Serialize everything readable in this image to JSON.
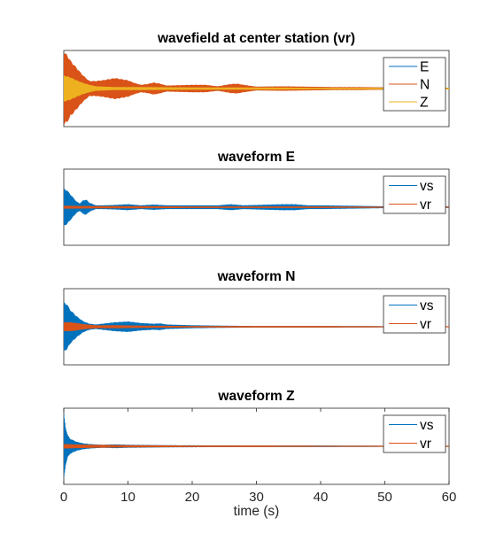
{
  "chart_data": [
    {
      "type": "line",
      "title": "wavefield at center station (vr)",
      "xlim": [
        0,
        60
      ],
      "ylim": [
        -1,
        1
      ],
      "legend": "top-right",
      "series": [
        {
          "name": "E",
          "color": "#0072BD",
          "envelope": {
            "x": [
              0,
              1,
              2,
              3,
              4,
              5,
              6,
              7,
              8,
              9,
              10,
              12,
              14,
              15,
              17,
              20,
              24,
              26,
              28,
              32,
              36,
              40,
              44,
              48,
              60
            ],
            "amp": [
              0.55,
              0.4,
              0.3,
              0.22,
              0.15,
              0.12,
              0.1,
              0.09,
              0.08,
              0.08,
              0.08,
              0.07,
              0.07,
              0.08,
              0.07,
              0.06,
              0.06,
              0.07,
              0.05,
              0.05,
              0.04,
              0.04,
              0.03,
              0.03,
              0.02
            ]
          }
        },
        {
          "name": "N",
          "color": "#D95319",
          "envelope": {
            "x": [
              0,
              0.5,
              1,
              2,
              3,
              4,
              5,
              6,
              7,
              8,
              9,
              10,
              11,
              12,
              13,
              14,
              15,
              16,
              18,
              20,
              22,
              24,
              26,
              27,
              28,
              30,
              34,
              38,
              42,
              46,
              50,
              55,
              60
            ],
            "amp": [
              0.95,
              0.9,
              0.75,
              0.55,
              0.35,
              0.2,
              0.2,
              0.22,
              0.25,
              0.28,
              0.25,
              0.22,
              0.15,
              0.1,
              0.12,
              0.16,
              0.13,
              0.08,
              0.09,
              0.1,
              0.1,
              0.06,
              0.12,
              0.13,
              0.1,
              0.05,
              0.06,
              0.05,
              0.04,
              0.04,
              0.03,
              0.02,
              0.02
            ]
          }
        },
        {
          "name": "Z",
          "color": "#EDB120",
          "envelope": {
            "x": [
              0,
              1,
              2,
              3,
              4,
              5,
              8,
              12,
              20,
              30,
              40,
              50,
              60
            ],
            "amp": [
              0.35,
              0.3,
              0.22,
              0.15,
              0.1,
              0.06,
              0.04,
              0.04,
              0.03,
              0.03,
              0.02,
              0.02,
              0.02
            ]
          }
        }
      ]
    },
    {
      "type": "line",
      "title": "waveform E",
      "xlim": [
        0,
        60
      ],
      "ylim": [
        -1,
        1
      ],
      "legend": "top-right",
      "series": [
        {
          "name": "vs",
          "color": "#0072BD",
          "envelope": {
            "x": [
              0,
              0.5,
              1,
              2,
              2.5,
              3,
              3.5,
              4,
              5,
              6,
              8,
              10,
              12,
              14,
              16,
              20,
              24,
              26,
              28,
              30,
              34,
              36,
              38,
              40,
              44,
              48,
              52,
              60
            ],
            "amp": [
              0.5,
              0.45,
              0.35,
              0.15,
              0.1,
              0.18,
              0.2,
              0.12,
              0.05,
              0.05,
              0.06,
              0.08,
              0.05,
              0.07,
              0.05,
              0.05,
              0.05,
              0.08,
              0.05,
              0.06,
              0.08,
              0.08,
              0.05,
              0.05,
              0.04,
              0.03,
              0.02,
              0.02
            ]
          }
        },
        {
          "name": "vr",
          "color": "#D95319",
          "envelope": {
            "x": [
              0,
              5,
              10,
              20,
              30,
              40,
              50,
              60
            ],
            "amp": [
              0.04,
              0.03,
              0.03,
              0.02,
              0.02,
              0.02,
              0.015,
              0.015
            ]
          }
        }
      ]
    },
    {
      "type": "line",
      "title": "waveform N",
      "xlim": [
        0,
        60
      ],
      "ylim": [
        -1,
        1
      ],
      "legend": "top-right",
      "series": [
        {
          "name": "vs",
          "color": "#0072BD",
          "envelope": {
            "x": [
              0,
              0.5,
              1,
              2,
              3,
              4,
              5,
              6,
              8,
              10,
              12,
              14,
              15,
              16,
              18,
              20,
              24,
              30,
              40,
              50,
              60
            ],
            "amp": [
              0.65,
              0.6,
              0.45,
              0.28,
              0.15,
              0.08,
              0.06,
              0.08,
              0.12,
              0.14,
              0.1,
              0.08,
              0.09,
              0.06,
              0.05,
              0.04,
              0.03,
              0.02,
              0.02,
              0.015,
              0.01
            ]
          }
        },
        {
          "name": "vr",
          "color": "#D95319",
          "envelope": {
            "x": [
              0,
              1,
              2,
              3,
              5,
              8,
              12,
              20,
              30,
              40,
              50,
              60
            ],
            "amp": [
              0.12,
              0.12,
              0.1,
              0.07,
              0.04,
              0.04,
              0.03,
              0.02,
              0.02,
              0.02,
              0.015,
              0.015
            ]
          }
        }
      ]
    },
    {
      "type": "line",
      "title": "waveform Z",
      "xlim": [
        0,
        60
      ],
      "ylim": [
        -1,
        1
      ],
      "xlabel": "time (s)",
      "xticks": [
        0,
        10,
        20,
        30,
        40,
        50,
        60
      ],
      "legend": "top-right",
      "series": [
        {
          "name": "vs",
          "color": "#0072BD",
          "envelope": {
            "x": [
              0,
              0.3,
              0.6,
              1,
              2,
              3,
              4,
              5,
              6,
              8,
              10,
              15,
              20,
              30,
              40,
              50,
              60
            ],
            "amp": [
              0.9,
              0.5,
              0.3,
              0.2,
              0.12,
              0.08,
              0.06,
              0.05,
              0.04,
              0.05,
              0.04,
              0.03,
              0.025,
              0.02,
              0.02,
              0.015,
              0.015
            ]
          }
        },
        {
          "name": "vr",
          "color": "#D95319",
          "envelope": {
            "x": [
              0,
              2,
              5,
              10,
              20,
              30,
              40,
              50,
              60
            ],
            "amp": [
              0.06,
              0.05,
              0.04,
              0.03,
              0.02,
              0.02,
              0.015,
              0.015,
              0.015
            ]
          }
        }
      ]
    }
  ]
}
